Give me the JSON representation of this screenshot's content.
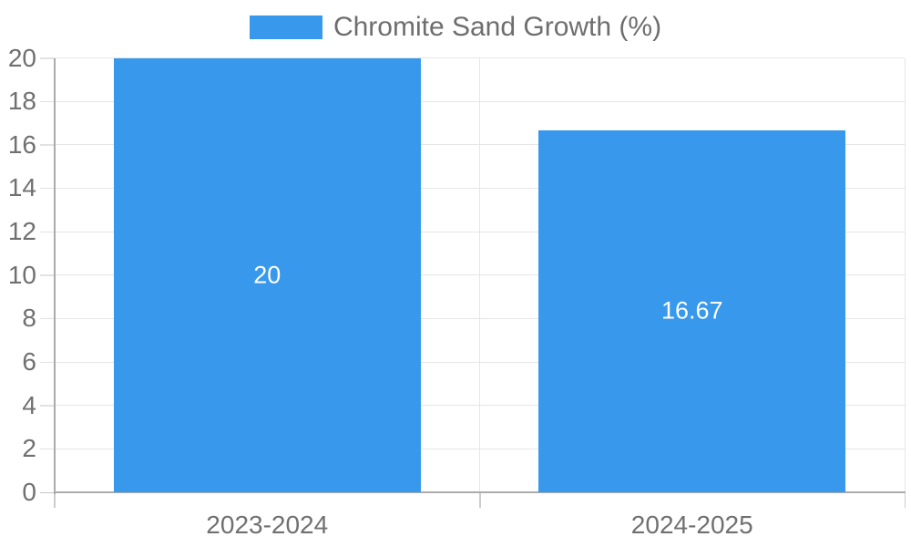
{
  "chart_data": {
    "type": "bar",
    "title": "",
    "legend_entries": [
      "Chromite Sand Growth (%)"
    ],
    "legend_position": "top",
    "categories": [
      "2023-2024",
      "2024-2025"
    ],
    "series": [
      {
        "name": "Chromite Sand Growth (%)",
        "values": [
          20,
          16.67
        ]
      }
    ],
    "value_labels": [
      "20",
      "16.67"
    ],
    "ylim": [
      0,
      20
    ],
    "yticks": [
      0,
      2,
      4,
      6,
      8,
      10,
      12,
      14,
      16,
      18,
      20
    ],
    "grid": true
  },
  "colors": {
    "bar": "#3899ec",
    "grid": "#e6e6e6",
    "axis": "#ababab",
    "tick_minor": "#e2e2e2",
    "tick_zero": "#c4c4c4",
    "tick_bottom": "#cccccc",
    "tick_label": "#707070",
    "legend_text": "#6e6e6e",
    "bar_label": "#ffffff",
    "background": "#ffffff"
  }
}
